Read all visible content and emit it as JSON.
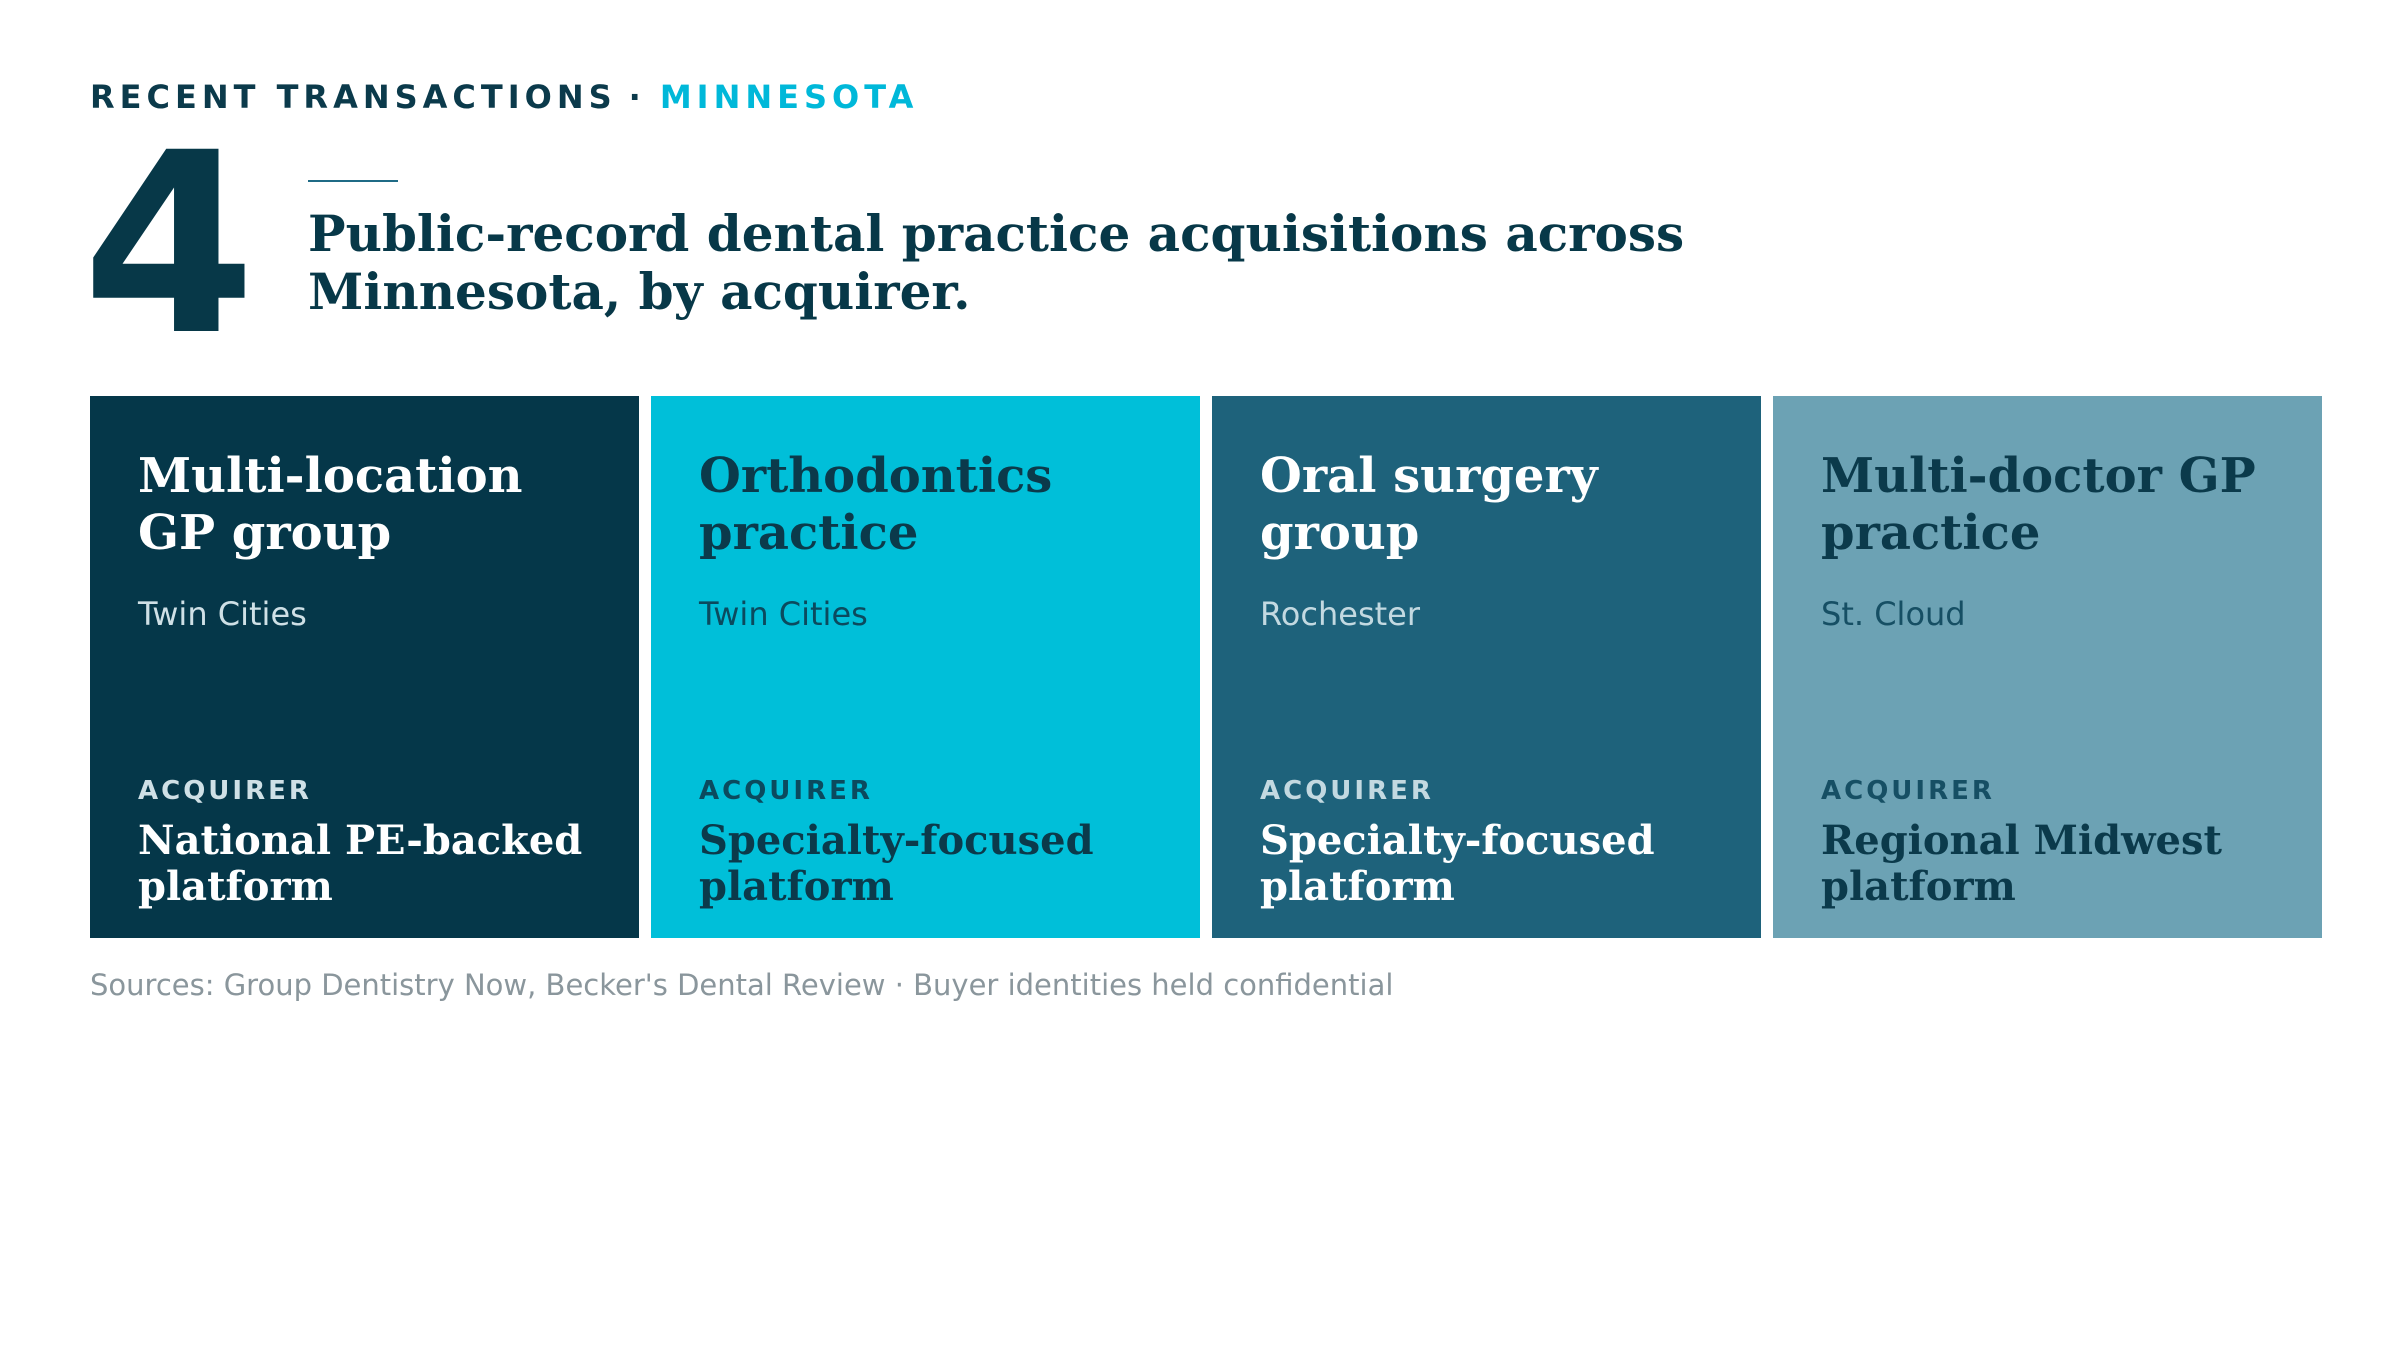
{
  "header": {
    "eyebrow_label": "RECENT TRANSACTIONS",
    "eyebrow_separator": "·",
    "eyebrow_region": "MINNESOTA",
    "big_number": "4",
    "headline": "Public-record dental practice acquisitions across Minnesota, by acquirer."
  },
  "cards": [
    {
      "title": "Multi-location GP group",
      "location": "Twin Cities",
      "acquirer_label": "ACQUIRER",
      "acquirer": "National PE-backed platform",
      "colors": {
        "bg": "#053749",
        "title": "#ffffff",
        "location": "#cfe0e6",
        "label": "#cfe0e6",
        "acquirer": "#ffffff"
      }
    },
    {
      "title": "Orthodontics practice",
      "location": "Twin Cities",
      "acquirer_label": "ACQUIRER",
      "acquirer": "Specialty-focused platform",
      "colors": {
        "bg": "#00bfd9",
        "title": "#0b3a4b",
        "location": "#0b4a5e",
        "label": "#0b4a5e",
        "acquirer": "#0b3a4b"
      }
    },
    {
      "title": "Oral surgery group",
      "location": "Rochester",
      "acquirer_label": "ACQUIRER",
      "acquirer": "Specialty-focused platform",
      "colors": {
        "bg": "#1e627b",
        "title": "#ffffff",
        "location": "#c3d9e1",
        "label": "#c3d9e1",
        "acquirer": "#ffffff"
      }
    },
    {
      "title": "Multi-doctor GP practice",
      "location": "St. Cloud",
      "acquirer_label": "ACQUIRER",
      "acquirer": "Regional Midwest platform",
      "colors": {
        "bg": "#6ca2b4",
        "title": "#0b3a4b",
        "location": "#164f64",
        "label": "#164f64",
        "acquirer": "#0b3a4b"
      }
    }
  ],
  "footer": {
    "sources": "Sources: Group Dentistry Now, Becker's Dental Review · Buyer identities held confidential"
  }
}
